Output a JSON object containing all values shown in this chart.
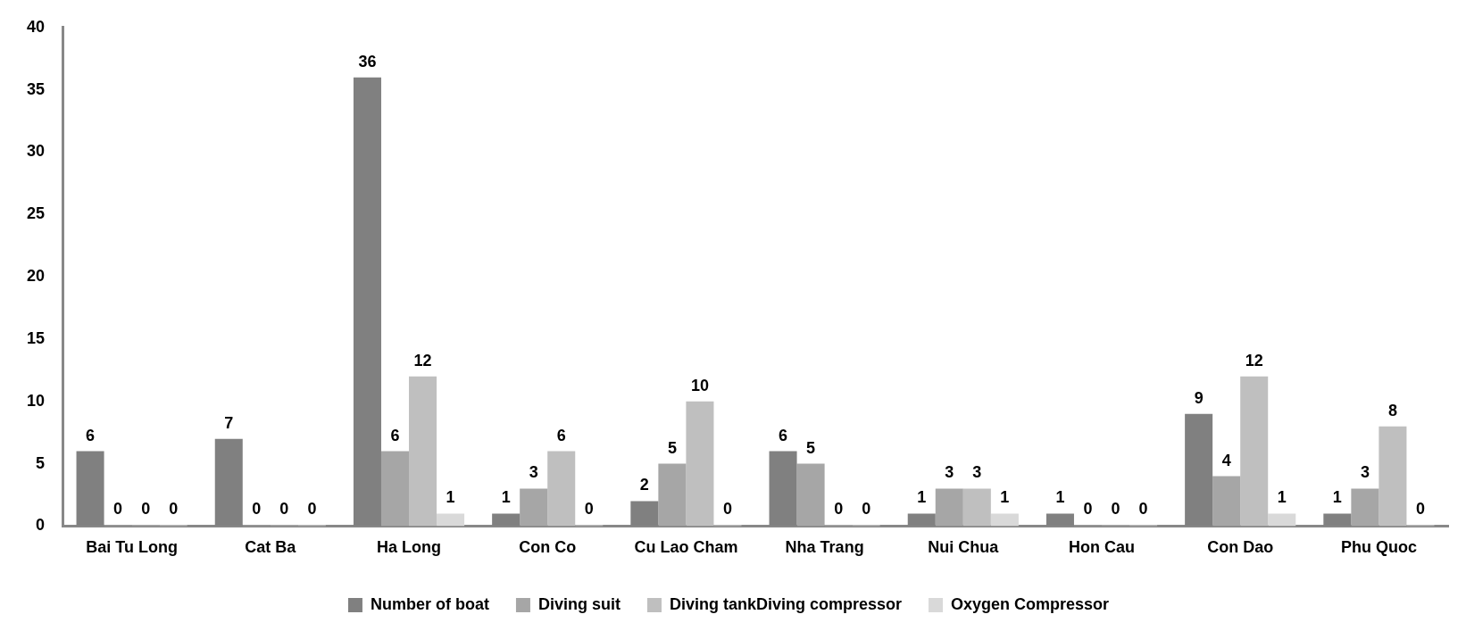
{
  "chart_data": {
    "type": "bar",
    "categories": [
      "Bai Tu Long",
      "Cat Ba",
      "Ha Long",
      "Con Co",
      "Cu Lao Cham",
      "Nha Trang",
      "Nui Chua",
      "Hon Cau",
      "Con Dao",
      "Phu Quoc"
    ],
    "series": [
      {
        "name": "Number of boat",
        "color": "#808080",
        "values": [
          6,
          7,
          36,
          1,
          2,
          6,
          1,
          1,
          9,
          1
        ]
      },
      {
        "name": "Diving suit",
        "color": "#a6a6a6",
        "values": [
          0,
          0,
          6,
          3,
          5,
          5,
          3,
          0,
          4,
          3
        ]
      },
      {
        "name": "Diving tankDiving compressor",
        "color": "#bfbfbf",
        "values": [
          0,
          0,
          12,
          6,
          10,
          0,
          3,
          0,
          12,
          8
        ]
      },
      {
        "name": "Oxygen Compressor",
        "color": "#d9d9d9",
        "values": [
          0,
          0,
          1,
          0,
          0,
          0,
          1,
          0,
          1,
          0
        ]
      }
    ],
    "ylim": [
      0,
      40
    ],
    "yticks": [
      0,
      5,
      10,
      15,
      20,
      25,
      30,
      35,
      40
    ],
    "grid": false,
    "legend": "bottom",
    "data_labels": true
  }
}
